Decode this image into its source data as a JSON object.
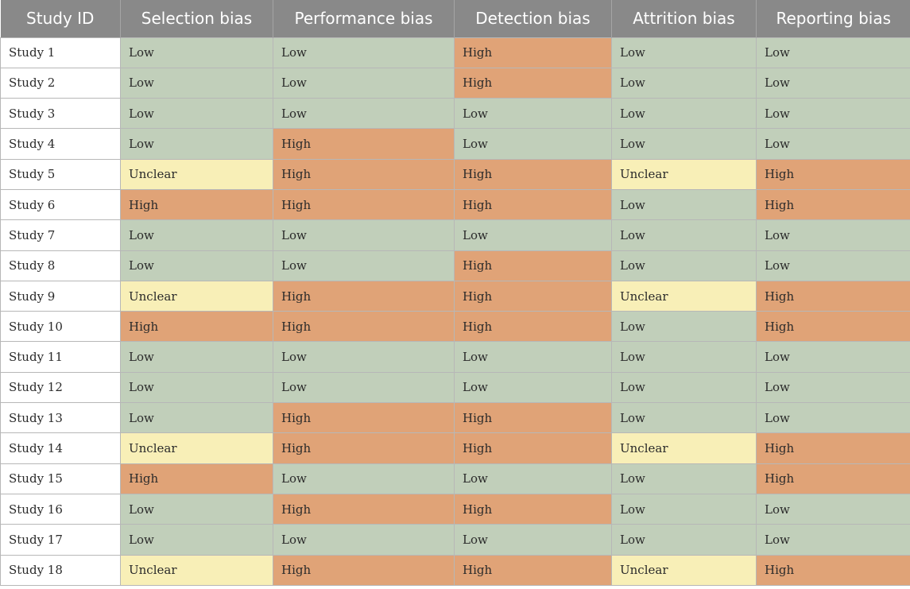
{
  "table": {
    "headers": [
      "Study ID",
      "Selection bias",
      "Performance bias",
      "Detection bias",
      "Attrition bias",
      "Reporting bias"
    ],
    "rows": [
      {
        "id": "Study 1",
        "values": [
          "Low",
          "Low",
          "High",
          "Low",
          "Low"
        ]
      },
      {
        "id": "Study 2",
        "values": [
          "Low",
          "Low",
          "High",
          "Low",
          "Low"
        ]
      },
      {
        "id": "Study 3",
        "values": [
          "Low",
          "Low",
          "Low",
          "Low",
          "Low"
        ]
      },
      {
        "id": "Study 4",
        "values": [
          "Low",
          "High",
          "Low",
          "Low",
          "Low"
        ]
      },
      {
        "id": "Study 5",
        "values": [
          "Unclear",
          "High",
          "High",
          "Unclear",
          "High"
        ]
      },
      {
        "id": "Study 6",
        "values": [
          "High",
          "High",
          "High",
          "Low",
          "High"
        ]
      },
      {
        "id": "Study 7",
        "values": [
          "Low",
          "Low",
          "Low",
          "Low",
          "Low"
        ]
      },
      {
        "id": "Study 8",
        "values": [
          "Low",
          "Low",
          "High",
          "Low",
          "Low"
        ]
      },
      {
        "id": "Study 9",
        "values": [
          "Unclear",
          "High",
          "High",
          "Unclear",
          "High"
        ]
      },
      {
        "id": "Study 10",
        "values": [
          "High",
          "High",
          "High",
          "Low",
          "High"
        ]
      },
      {
        "id": "Study 11",
        "values": [
          "Low",
          "Low",
          "Low",
          "Low",
          "Low"
        ]
      },
      {
        "id": "Study 12",
        "values": [
          "Low",
          "Low",
          "Low",
          "Low",
          "Low"
        ]
      },
      {
        "id": "Study 13",
        "values": [
          "Low",
          "High",
          "High",
          "Low",
          "Low"
        ]
      },
      {
        "id": "Study 14",
        "values": [
          "Unclear",
          "High",
          "High",
          "Unclear",
          "High"
        ]
      },
      {
        "id": "Study 15",
        "values": [
          "High",
          "Low",
          "Low",
          "Low",
          "High"
        ]
      },
      {
        "id": "Study 16",
        "values": [
          "Low",
          "High",
          "High",
          "Low",
          "Low"
        ]
      },
      {
        "id": "Study 17",
        "values": [
          "Low",
          "Low",
          "Low",
          "Low",
          "Low"
        ]
      },
      {
        "id": "Study 18",
        "values": [
          "Unclear",
          "High",
          "High",
          "Unclear",
          "High"
        ]
      }
    ]
  },
  "colors": {
    "header_bg": "#898989",
    "low": "#c1cfba",
    "high": "#e0a377",
    "unclear": "#f8efb7"
  }
}
